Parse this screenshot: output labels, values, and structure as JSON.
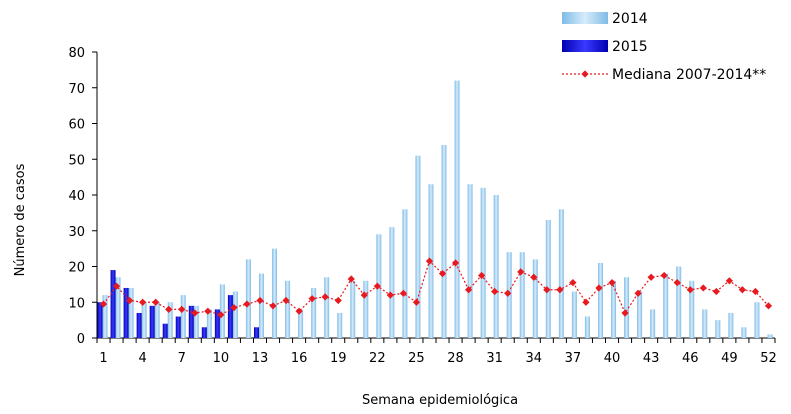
{
  "chart_data": {
    "type": "bar",
    "xlabel": "Semana epidemiológica",
    "ylabel": "Número de casos",
    "ylim": [
      0,
      80
    ],
    "yticks": [
      0,
      10,
      20,
      30,
      40,
      50,
      60,
      70,
      80
    ],
    "xticks": [
      1,
      4,
      7,
      10,
      13,
      16,
      19,
      22,
      25,
      28,
      31,
      34,
      37,
      40,
      43,
      46,
      49,
      52
    ],
    "grid": false,
    "legend_position": "top-right",
    "x": [
      1,
      2,
      3,
      4,
      5,
      6,
      7,
      8,
      9,
      10,
      11,
      12,
      13,
      14,
      15,
      16,
      17,
      18,
      19,
      20,
      21,
      22,
      23,
      24,
      25,
      26,
      27,
      28,
      29,
      30,
      31,
      32,
      33,
      34,
      35,
      36,
      37,
      38,
      39,
      40,
      41,
      42,
      43,
      44,
      45,
      46,
      47,
      48,
      49,
      50,
      51,
      52
    ],
    "series": [
      {
        "name": "2014",
        "kind": "bar",
        "color": "#a9d3f0",
        "values": [
          12,
          17,
          14,
          10,
          10,
          10,
          12,
          9,
          8,
          15,
          13,
          22,
          18,
          25,
          16,
          8,
          14,
          17,
          7,
          16,
          16,
          29,
          31,
          36,
          51,
          43,
          54,
          72,
          43,
          42,
          40,
          24,
          24,
          22,
          33,
          36,
          13,
          6,
          21,
          16,
          17,
          13,
          8,
          18,
          20,
          16,
          8,
          5,
          7,
          3,
          10,
          1
        ]
      },
      {
        "name": "2015",
        "kind": "bar",
        "color": "#1a1adb",
        "values": [
          10,
          19,
          14,
          7,
          9,
          4,
          6,
          9,
          3,
          8,
          12,
          null,
          3,
          null,
          null,
          null,
          null,
          null,
          null,
          null,
          null,
          null,
          null,
          null,
          null,
          null,
          null,
          null,
          null,
          null,
          null,
          null,
          null,
          null,
          null,
          null,
          null,
          null,
          null,
          null,
          null,
          null,
          null,
          null,
          null,
          null,
          null,
          null,
          null,
          null,
          null,
          null
        ]
      },
      {
        "name": "Mediana 2007-2014**",
        "kind": "line",
        "color": "#e8191f",
        "values": [
          9.5,
          14.5,
          10.5,
          10,
          10,
          8,
          8,
          7,
          7.5,
          6.5,
          8.5,
          9.5,
          10.5,
          9,
          10.5,
          7.5,
          11,
          11.5,
          10.5,
          16.5,
          12,
          14.5,
          12,
          12.5,
          10,
          21.5,
          18,
          21,
          13.5,
          17.5,
          13,
          12.5,
          18.5,
          17,
          13.5,
          13.5,
          15.5,
          10,
          14,
          15.5,
          7,
          12.5,
          17,
          17.5,
          15.5,
          13.5,
          14,
          13,
          16,
          13.5,
          13,
          9
        ]
      }
    ]
  }
}
